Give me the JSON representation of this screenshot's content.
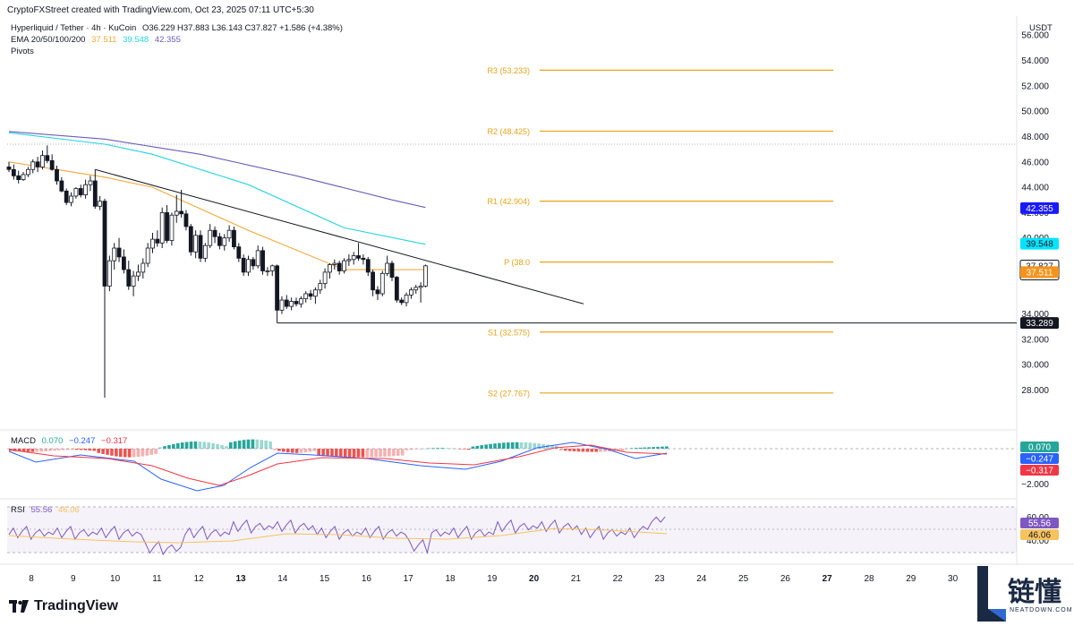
{
  "header": {
    "credit": "CryptoFXStreet created with TradingView.com, Oct 23, 2025 07:11 UTC+5:30",
    "symbol": "Hyperliquid / Tether · 4h · KuCoin",
    "ohlc": "O36.229 H37.883 L36.143 C37.827 +1.586 (+4.38%)",
    "ema_label": "EMA 20/50/100/200",
    "ema_values": [
      "37.511",
      "39.548",
      "42.355"
    ],
    "pivots_label": "Pivots",
    "currency": "USDT"
  },
  "colors": {
    "up_candle": "#ffffff",
    "down_candle": "#131722",
    "ema50": "#f0a93b",
    "ema100": "#26d4e0",
    "ema200": "#6b5fb8",
    "pivot": "#e8a317",
    "macd_line": "#2962ff",
    "signal_line": "#f23645",
    "hist_pos": "#26a69a",
    "hist_neg": "#ef5350",
    "rsi_line": "#7e57c2",
    "rsi_ma": "#f7c35f",
    "price_badge": "#131722",
    "ema50_badge": "#f7931a",
    "ema100_badge": "#00e5ff",
    "ema200_badge": "#1a1aff"
  },
  "chart_data": [
    {
      "type": "candlestick",
      "x_ticks": [
        "8",
        "9",
        "10",
        "11",
        "12",
        "13",
        "14",
        "15",
        "16",
        "17",
        "18",
        "19",
        "20",
        "21",
        "22",
        "23",
        "24",
        "25",
        "26",
        "27",
        "28",
        "29",
        "30"
      ],
      "y_ticks": [
        "56.000",
        "54.000",
        "52.000",
        "50.000",
        "48.000",
        "46.000",
        "44.000",
        "42.000",
        "40.000",
        "34.000",
        "32.000",
        "30.000",
        "28.000"
      ],
      "ylim": [
        25,
        57.5
      ],
      "candles": [
        [
          45.6,
          46.0,
          45.2,
          45.4
        ],
        [
          45.4,
          45.8,
          44.6,
          44.9
        ],
        [
          44.9,
          45.3,
          44.3,
          44.6
        ],
        [
          44.6,
          45.2,
          44.5,
          45.0
        ],
        [
          45.0,
          45.6,
          44.8,
          45.4
        ],
        [
          45.4,
          46.2,
          45.1,
          46.0
        ],
        [
          46.0,
          46.4,
          45.2,
          45.6
        ],
        [
          45.6,
          46.9,
          45.4,
          46.5
        ],
        [
          46.5,
          47.3,
          45.9,
          46.1
        ],
        [
          46.1,
          46.6,
          45.3,
          45.4
        ],
        [
          45.4,
          45.7,
          44.2,
          44.5
        ],
        [
          44.5,
          44.8,
          43.6,
          43.7
        ],
        [
          43.7,
          43.9,
          42.6,
          42.8
        ],
        [
          42.8,
          43.6,
          42.5,
          43.3
        ],
        [
          43.3,
          44.0,
          43.1,
          43.9
        ],
        [
          43.9,
          44.2,
          43.2,
          43.4
        ],
        [
          43.4,
          44.6,
          43.1,
          44.2
        ],
        [
          44.2,
          44.9,
          43.7,
          44.5
        ],
        [
          44.5,
          45.4,
          42.3,
          42.5
        ],
        [
          42.5,
          43.3,
          42.2,
          42.9
        ],
        [
          42.9,
          43.1,
          27.4,
          36.2
        ],
        [
          36.2,
          38.6,
          35.8,
          38.2
        ],
        [
          38.2,
          39.6,
          37.5,
          39.2
        ],
        [
          39.2,
          40.0,
          38.1,
          38.5
        ],
        [
          38.5,
          39.1,
          37.2,
          37.5
        ],
        [
          37.5,
          38.2,
          35.9,
          36.2
        ],
        [
          36.2,
          37.4,
          35.4,
          37.0
        ],
        [
          37.0,
          37.9,
          36.6,
          37.3
        ],
        [
          37.3,
          38.4,
          36.8,
          38.0
        ],
        [
          38.0,
          39.6,
          37.7,
          39.2
        ],
        [
          39.2,
          40.4,
          38.8,
          39.9
        ],
        [
          39.9,
          40.6,
          39.3,
          39.6
        ],
        [
          39.6,
          42.4,
          39.2,
          42.0
        ],
        [
          42.0,
          42.6,
          39.6,
          39.8
        ],
        [
          39.8,
          42.0,
          39.4,
          41.8
        ],
        [
          41.8,
          43.4,
          41.2,
          42.1
        ],
        [
          42.1,
          43.8,
          41.6,
          41.9
        ],
        [
          41.9,
          42.2,
          40.6,
          40.9
        ],
        [
          40.9,
          41.1,
          38.6,
          38.9
        ],
        [
          38.9,
          40.6,
          38.4,
          40.2
        ],
        [
          40.2,
          40.6,
          38.1,
          38.4
        ],
        [
          38.4,
          39.6,
          38.1,
          39.4
        ],
        [
          39.4,
          41.1,
          39.2,
          40.6
        ],
        [
          40.6,
          40.9,
          39.6,
          40.1
        ],
        [
          40.1,
          40.4,
          39.1,
          39.4
        ],
        [
          39.4,
          40.3,
          39.0,
          40.0
        ],
        [
          40.0,
          41.0,
          39.7,
          40.6
        ],
        [
          40.6,
          40.9,
          39.1,
          39.3
        ],
        [
          39.3,
          39.6,
          38.1,
          38.4
        ],
        [
          38.4,
          38.7,
          37.0,
          37.3
        ],
        [
          37.3,
          38.6,
          37.0,
          38.3
        ],
        [
          38.3,
          38.5,
          37.5,
          37.8
        ],
        [
          37.8,
          39.4,
          37.6,
          39.0
        ],
        [
          39.0,
          39.3,
          37.1,
          37.4
        ],
        [
          37.4,
          37.7,
          37.0,
          37.4
        ],
        [
          37.4,
          37.9,
          37.0,
          37.8
        ],
        [
          37.8,
          37.9,
          33.3,
          34.3
        ],
        [
          34.3,
          35.4,
          34.0,
          35.1
        ],
        [
          35.1,
          35.5,
          34.4,
          34.6
        ],
        [
          34.6,
          35.3,
          34.3,
          35.0
        ],
        [
          35.0,
          35.3,
          34.6,
          34.8
        ],
        [
          34.8,
          35.4,
          34.5,
          35.2
        ],
        [
          35.2,
          35.8,
          34.9,
          35.6
        ],
        [
          35.6,
          35.9,
          35.1,
          35.4
        ],
        [
          35.4,
          36.1,
          34.8,
          35.9
        ],
        [
          35.9,
          36.7,
          35.6,
          36.4
        ],
        [
          36.4,
          37.6,
          36.0,
          37.3
        ],
        [
          37.3,
          38.0,
          36.8,
          37.9
        ],
        [
          37.9,
          38.3,
          37.5,
          38.0
        ],
        [
          38.0,
          38.2,
          37.1,
          37.4
        ],
        [
          37.4,
          38.4,
          37.2,
          38.2
        ],
        [
          38.2,
          38.7,
          37.8,
          38.3
        ],
        [
          38.3,
          38.9,
          37.9,
          38.6
        ],
        [
          38.6,
          39.6,
          38.2,
          38.4
        ],
        [
          38.4,
          38.7,
          37.9,
          38.3
        ],
        [
          38.3,
          38.5,
          37.0,
          37.3
        ],
        [
          37.3,
          37.5,
          35.4,
          35.9
        ],
        [
          35.9,
          36.2,
          35.1,
          35.6
        ],
        [
          35.6,
          37.4,
          35.4,
          37.2
        ],
        [
          37.2,
          38.6,
          37.0,
          38.0
        ],
        [
          38.0,
          38.2,
          36.6,
          36.9
        ],
        [
          36.9,
          37.0,
          34.9,
          35.1
        ],
        [
          35.1,
          35.3,
          34.7,
          34.9
        ],
        [
          34.9,
          35.7,
          34.6,
          35.5
        ],
        [
          35.5,
          36.1,
          35.2,
          35.9
        ],
        [
          35.9,
          36.3,
          35.6,
          36.1
        ],
        [
          36.1,
          36.5,
          34.9,
          36.2
        ],
        [
          36.2,
          37.9,
          36.1,
          37.8
        ]
      ],
      "ema50": [
        [
          0,
          46.0
        ],
        [
          20,
          44.8
        ],
        [
          30,
          44.0
        ],
        [
          50,
          40.6
        ],
        [
          70,
          37.5
        ],
        [
          87,
          37.5
        ]
      ],
      "ema100": [
        [
          0,
          48.3
        ],
        [
          20,
          47.4
        ],
        [
          30,
          46.6
        ],
        [
          50,
          44.2
        ],
        [
          70,
          40.8
        ],
        [
          87,
          39.5
        ]
      ],
      "ema200": [
        [
          0,
          48.4
        ],
        [
          20,
          47.8
        ],
        [
          40,
          46.6
        ],
        [
          60,
          44.9
        ],
        [
          80,
          43.0
        ],
        [
          87,
          42.4
        ]
      ],
      "trendline": [
        [
          18,
          45.4
        ],
        [
          120,
          34.8
        ]
      ],
      "support_line": {
        "from": 56,
        "value": 33.289
      },
      "pivots": [
        {
          "label": "R3 (53.233)",
          "value": 53.233
        },
        {
          "label": "R2 (48.425)",
          "value": 48.425
        },
        {
          "label": "R1 (42.904)",
          "value": 42.904
        },
        {
          "label": "P (38.0",
          "value": 38.098
        },
        {
          "label": "S1 (32.575)",
          "value": 32.575
        },
        {
          "label": "S2 (27.767)",
          "value": 27.767
        }
      ],
      "price_badges": [
        {
          "value": 42.355,
          "label": "42.355",
          "kind": "ema200"
        },
        {
          "value": 39.548,
          "label": "39.548",
          "kind": "ema100"
        },
        {
          "value": 37.827,
          "label": "37.827",
          "sub": "02:18:48",
          "kind": "price"
        },
        {
          "value": 37.3,
          "label": "37.511",
          "kind": "ema50"
        },
        {
          "value": 33.289,
          "label": "33.289",
          "kind": "support"
        }
      ]
    },
    {
      "type": "macd",
      "title": "MACD",
      "values": [
        "0.070",
        "−0.247",
        "−0.317"
      ],
      "y_ticks": [
        "−2.000"
      ],
      "badges": [
        "0.070",
        "−0.247",
        "−0.317"
      ]
    },
    {
      "type": "rsi",
      "title": "RSI",
      "values": [
        "55.56",
        "46.06"
      ],
      "y_ticks": [
        "60.00",
        "40.00"
      ],
      "badges": [
        "55.56",
        "46.06"
      ]
    }
  ],
  "footer": {
    "tv_brand": "TradingView",
    "watermark": "链懂",
    "watermark_sub": "NEATDOWN.COM"
  }
}
